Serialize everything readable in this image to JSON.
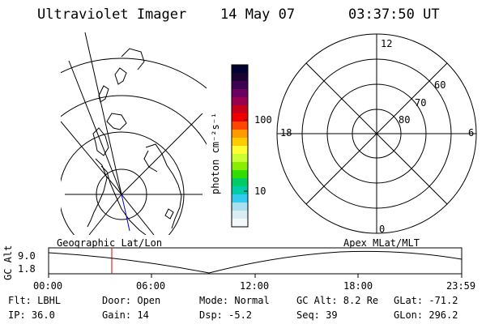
{
  "header": {
    "instrument": "Ultraviolet Imager",
    "date": "14 May 07",
    "time": "03:37:50 UT"
  },
  "colorbar": {
    "label": "photon cm⁻²s⁻¹",
    "tick_100": "100",
    "tick_10": "10",
    "colors": [
      "#000033",
      "#1a0033",
      "#3d0050",
      "#6a0060",
      "#99004d",
      "#c8001a",
      "#ee0000",
      "#ff4500",
      "#ff9900",
      "#ffcc00",
      "#ffff33",
      "#ccff33",
      "#88ee00",
      "#33dd00",
      "#00cc66",
      "#00ccaa",
      "#33ccee",
      "#a8e0ee",
      "#d8eef2",
      "#f4f8fa"
    ]
  },
  "polar": {
    "label_top": "12",
    "label_left": "18",
    "label_right": "6",
    "label_bottom": "0",
    "lat_60": "60",
    "lat_70": "70",
    "lat_80": "80"
  },
  "timeline": {
    "left_label": "Geographic Lat/Lon",
    "right_label": "Apex MLat/MLT",
    "axis_title": "GC Alt",
    "y_top": "9.0",
    "y_bottom": "1.8",
    "ticks": [
      "00:00",
      "06:00",
      "12:00",
      "18:00",
      "23:59"
    ]
  },
  "info": {
    "flt": "Flt: LBHL",
    "ip": "IP: 36.0",
    "door": "Door: Open",
    "gain": "Gain: 14",
    "mode": "Mode: Normal",
    "dsp": "Dsp:    -5.2",
    "gc_alt": "GC Alt: 8.2 Re",
    "seq": "Seq: 39",
    "glat": "GLat: -71.2",
    "glon": "GLon: 296.2"
  }
}
